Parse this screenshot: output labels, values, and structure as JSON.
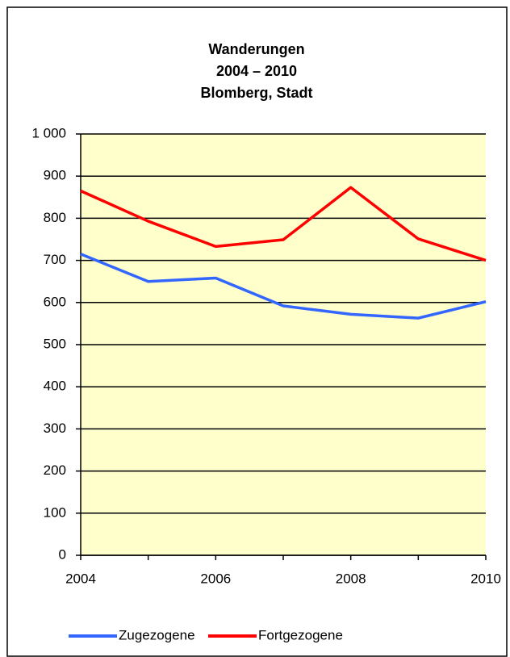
{
  "chart_data": {
    "type": "line",
    "title": [
      "Wanderungen",
      "2004 – 2010",
      "Blomberg, Stadt"
    ],
    "x": [
      2004,
      2005,
      2006,
      2007,
      2008,
      2009,
      2010
    ],
    "xlim": [
      2004,
      2010
    ],
    "xticks": [
      2004,
      2006,
      2008,
      2010
    ],
    "ylim": [
      0,
      1000
    ],
    "yticks": [
      0,
      100,
      200,
      300,
      400,
      500,
      600,
      700,
      800,
      900,
      {
        "value": 1000,
        "label": "1 000"
      }
    ],
    "grid": true,
    "plot_background": "#ffffcc",
    "legend": "bottom",
    "series": [
      {
        "name": "Zugezogene",
        "color": "#3366ff",
        "values": [
          715,
          650,
          658,
          592,
          572,
          563,
          602
        ]
      },
      {
        "name": "Fortgezogene",
        "color": "#ff0000",
        "values": [
          865,
          793,
          733,
          749,
          873,
          751,
          700
        ]
      }
    ]
  }
}
